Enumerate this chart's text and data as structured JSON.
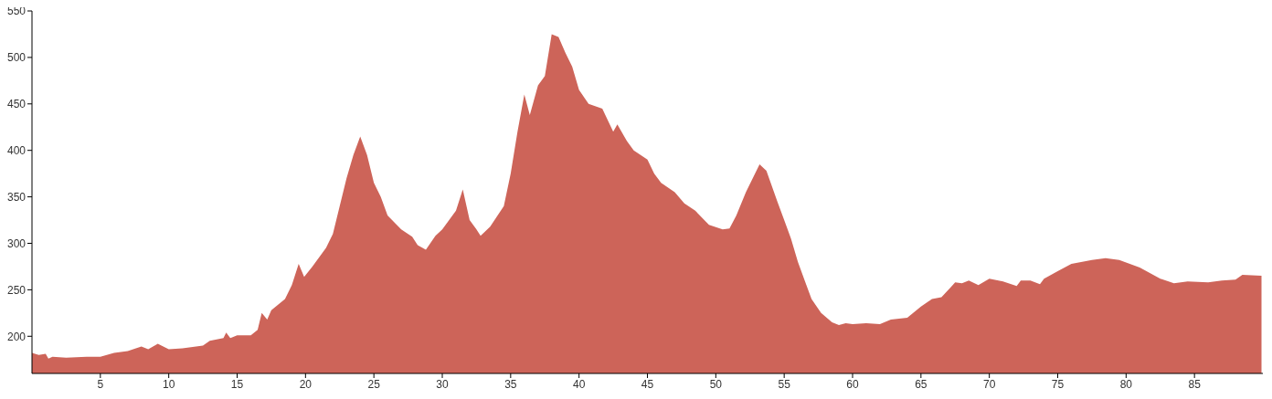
{
  "chart_data": {
    "type": "area",
    "color": "#cd6459",
    "xlim": [
      0,
      90
    ],
    "ylim": [
      160,
      550
    ],
    "xticks": [
      5,
      10,
      15,
      20,
      25,
      30,
      35,
      40,
      45,
      50,
      55,
      60,
      65,
      70,
      75,
      80,
      85
    ],
    "yticks": [
      200,
      250,
      300,
      350,
      400,
      450,
      500,
      550
    ],
    "grid": false,
    "legend": false,
    "x": [
      0,
      0.5,
      1,
      1.2,
      1.5,
      2.5,
      4,
      5,
      6,
      7,
      8,
      8.5,
      9.2,
      10,
      11,
      12,
      12.5,
      13,
      14,
      14.2,
      14.5,
      15,
      16,
      16.5,
      16.8,
      17.2,
      17.5,
      18.5,
      19,
      19.5,
      19.9,
      20.5,
      21.5,
      22,
      22.5,
      23,
      23.5,
      24,
      24.5,
      25,
      25.5,
      26,
      27,
      27.8,
      28.2,
      28.8,
      29.5,
      30,
      31,
      31.5,
      32,
      32.5,
      32.8,
      33.5,
      34.5,
      35,
      35.5,
      36,
      36.4,
      37,
      37.5,
      38,
      38.5,
      39,
      39.5,
      40,
      40.7,
      41.7,
      42.5,
      42.8,
      43.5,
      44,
      45,
      45.5,
      46,
      47,
      47.7,
      48.5,
      49.5,
      50.5,
      51,
      51.5,
      52.2,
      53.2,
      53.7,
      54.5,
      55,
      55.5,
      56,
      56.5,
      57,
      57.7,
      58.5,
      59,
      59.5,
      60,
      61,
      62,
      62.8,
      64,
      65,
      65.8,
      66.5,
      67.2,
      67.5,
      68,
      68.5,
      69.2,
      70,
      71,
      72,
      72.3,
      73,
      73.7,
      74,
      75,
      76,
      77.5,
      78.5,
      79.5,
      81,
      82.5,
      83.5,
      84.5,
      86,
      87,
      88,
      88.5,
      89.9
    ],
    "values": [
      182,
      180,
      181,
      176,
      178,
      177,
      178,
      178,
      182,
      184,
      189,
      186,
      192,
      186,
      187,
      189,
      190,
      195,
      198,
      204,
      198,
      201,
      201,
      207,
      225,
      218,
      228,
      240,
      255,
      278,
      264,
      275,
      295,
      310,
      340,
      370,
      395,
      415,
      395,
      365,
      350,
      330,
      315,
      307,
      298,
      293,
      308,
      315,
      335,
      358,
      325,
      315,
      308,
      318,
      340,
      375,
      420,
      460,
      438,
      470,
      480,
      525,
      522,
      505,
      490,
      465,
      450,
      445,
      420,
      428,
      410,
      400,
      390,
      375,
      365,
      355,
      343,
      335,
      320,
      315,
      316,
      330,
      355,
      385,
      378,
      345,
      325,
      305,
      280,
      260,
      240,
      225,
      215,
      212,
      214,
      213,
      214,
      213,
      218,
      220,
      232,
      240,
      242,
      253,
      258,
      257,
      260,
      255,
      262,
      259,
      254,
      260,
      260,
      256,
      262,
      270,
      278,
      282,
      284,
      282,
      274,
      262,
      257,
      259,
      258,
      260,
      261,
      266,
      265
    ]
  }
}
